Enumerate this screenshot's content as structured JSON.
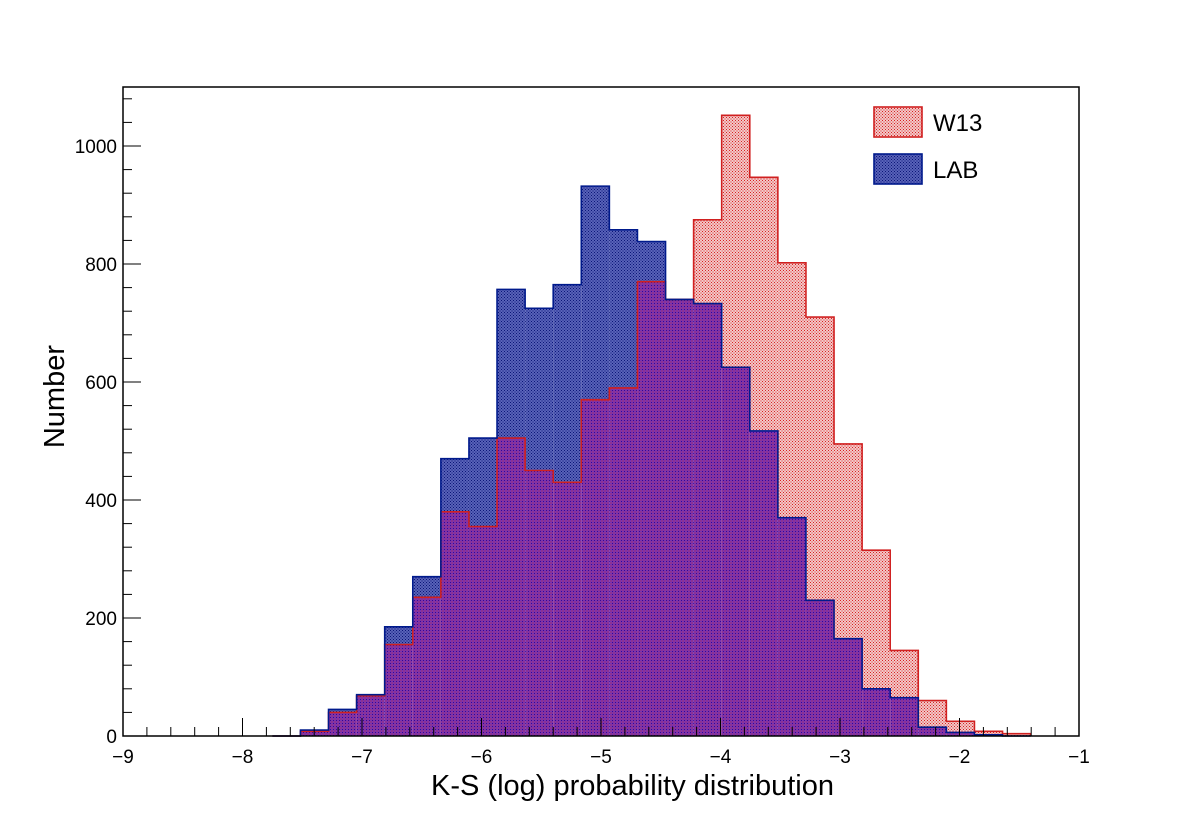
{
  "chart_data": {
    "type": "histogram",
    "xlabel": "K-S (log) probability distribution",
    "ylabel": "Number",
    "xlim": [
      -9,
      -1
    ],
    "ylim": [
      0,
      1100
    ],
    "x_ticks": [
      -9,
      -8,
      -7,
      -6,
      -5,
      -4,
      -3,
      -2,
      -1
    ],
    "y_ticks": [
      0,
      200,
      400,
      600,
      800,
      1000
    ],
    "bin_width": 0.235,
    "bin_start": -7.75,
    "grid": false,
    "legend_position": "top-right",
    "overlap_color": "#6a1ba6",
    "series": [
      {
        "name": "W13",
        "color": "#e23a3a",
        "edge_color": "#d02020",
        "values": [
          0,
          8,
          40,
          68,
          155,
          235,
          380,
          355,
          505,
          450,
          430,
          570,
          590,
          770,
          740,
          875,
          1052,
          947,
          802,
          710,
          495,
          315,
          145,
          60,
          25,
          8,
          4
        ]
      },
      {
        "name": "LAB",
        "color": "#2a3a9c",
        "edge_color": "#001a8c",
        "values": [
          0,
          10,
          45,
          70,
          185,
          270,
          470,
          505,
          757,
          725,
          765,
          932,
          858,
          838,
          740,
          733,
          625,
          517,
          370,
          230,
          165,
          80,
          65,
          15,
          6,
          2,
          0
        ]
      }
    ]
  }
}
